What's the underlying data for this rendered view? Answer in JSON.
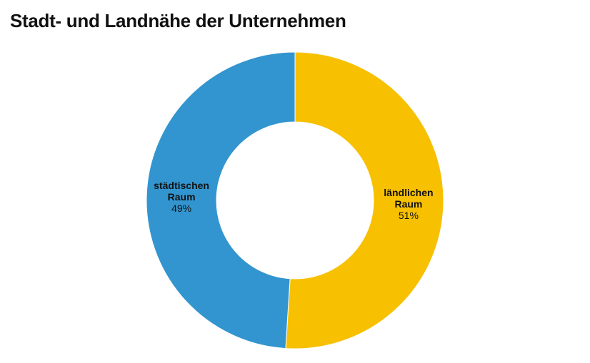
{
  "title": "Stadt- und Landnähe der Unternehmen",
  "chart_data": {
    "type": "pie",
    "title": "Stadt- und Landnähe der Unternehmen",
    "donut": true,
    "start": "top",
    "direction": "clockwise",
    "slices": [
      {
        "label_lines": [
          "ländlichen",
          "Raum"
        ],
        "label": "ländlichen Raum",
        "value": 51,
        "pct_label": "51%",
        "color": "#F7C000"
      },
      {
        "label_lines": [
          "städtischen",
          "Raum"
        ],
        "label": "städtischen Raum",
        "value": 49,
        "pct_label": "49%",
        "color": "#3295CF"
      }
    ]
  }
}
